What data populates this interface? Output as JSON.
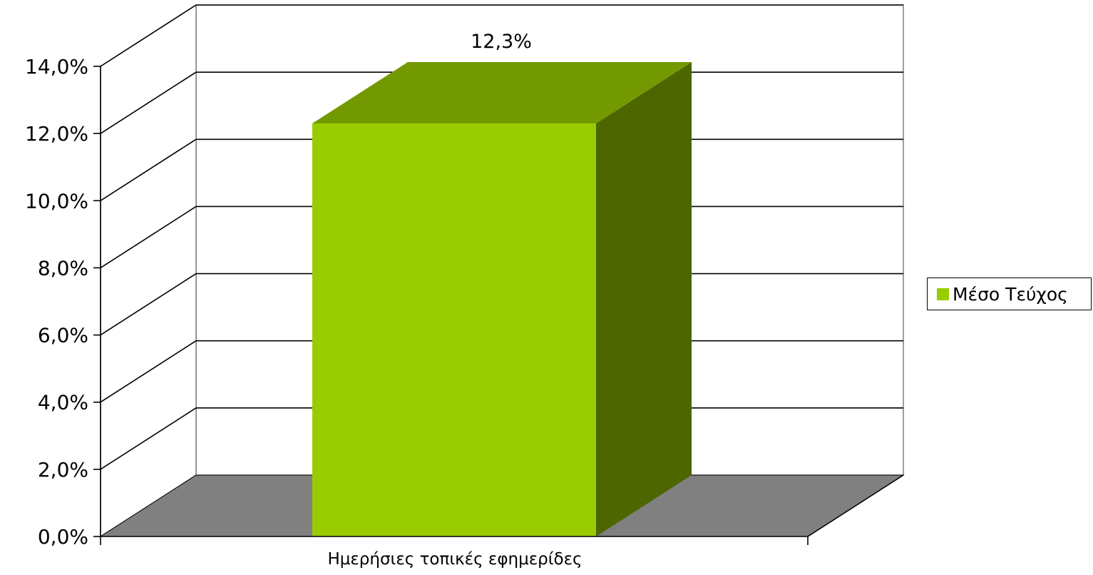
{
  "chart_data": {
    "type": "bar",
    "view": "3d",
    "categories": [
      "Ημερήσιες τοπικές εφημερίδες"
    ],
    "series": [
      {
        "name": "Μέσο Τεύχος",
        "values": [
          0.123
        ]
      }
    ],
    "data_labels": [
      "12,3%"
    ],
    "y_ticks": [
      0,
      0.02,
      0.04,
      0.06,
      0.08,
      0.1,
      0.12,
      0.14
    ],
    "y_tick_labels": [
      "0,0%",
      "2,0%",
      "4,0%",
      "6,0%",
      "8,0%",
      "10,0%",
      "12,0%",
      "14,0%"
    ],
    "ylim": [
      0,
      0.14
    ],
    "grid": true,
    "legend_position": "right",
    "colors": {
      "bar_front": "#99CC00",
      "bar_top": "#739900",
      "bar_side": "#4D6600",
      "floor": "#808080"
    }
  }
}
